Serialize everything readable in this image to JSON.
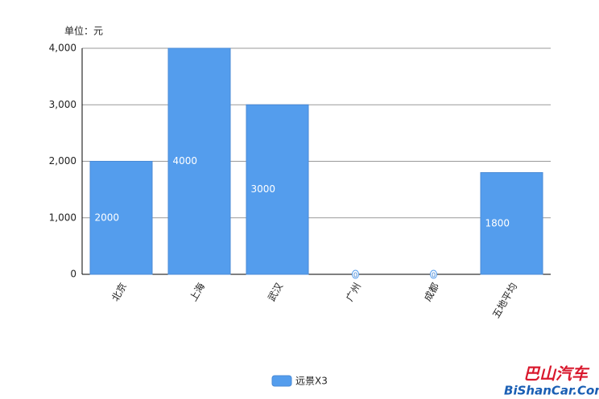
{
  "chart_data": {
    "type": "bar",
    "y_unit_label": "单位：元",
    "categories": [
      "北京",
      "上海",
      "武汉",
      "广州",
      "成都",
      "五地平均"
    ],
    "series": [
      {
        "name": "远景X3",
        "color": "#549ded",
        "values": [
          2000,
          4000,
          3000,
          0,
          0,
          1800
        ]
      }
    ],
    "ylim": [
      0,
      4000
    ],
    "yticks": [
      0,
      {
        "value": 1000,
        "label": "1,000"
      },
      {
        "value": 2000,
        "label": "2,000"
      },
      {
        "value": 3000,
        "label": "3,000"
      },
      {
        "value": 4000,
        "label": "4,000"
      }
    ],
    "grid": true,
    "legend": "bottom"
  },
  "watermark": {
    "title": "巴山汽车",
    "url": "BiShanCar.Com"
  }
}
